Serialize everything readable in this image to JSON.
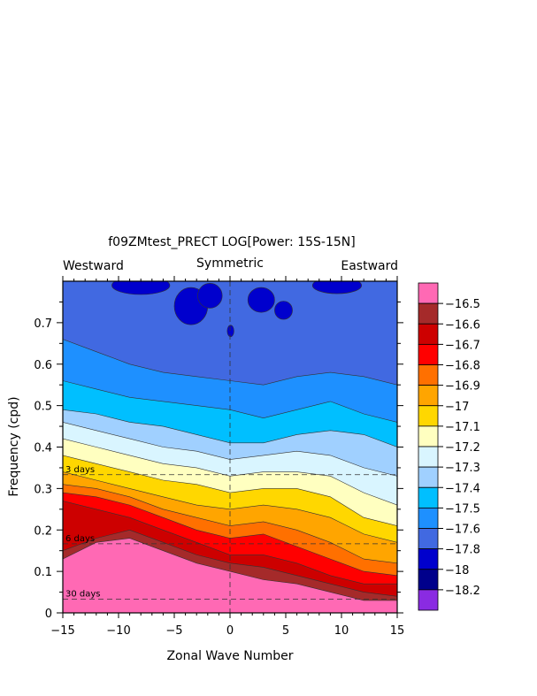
{
  "chart_data": {
    "type": "heatmap",
    "title": "f09ZMtest_PRECT LOG[Power: 15S-15N]",
    "subtitle_left": "Westward",
    "subtitle_center": "Symmetric",
    "subtitle_right": "Eastward",
    "xlabel": "Zonal Wave Number",
    "ylabel": "Frequency (cpd)",
    "xlim": [
      -15,
      15
    ],
    "ylim": [
      0,
      0.8
    ],
    "x_ticks": [
      -15,
      -10,
      -5,
      0,
      5,
      10,
      15
    ],
    "x_tick_labels": [
      "−15",
      "−10",
      "−5",
      "0",
      "5",
      "10",
      "15"
    ],
    "y_ticks": [
      0,
      0.1,
      0.2,
      0.3,
      0.4,
      0.5,
      0.6,
      0.7
    ],
    "y_tick_labels": [
      "0",
      "0.1",
      "0.2",
      "0.3",
      "0.4",
      "0.5",
      "0.6",
      "0.7"
    ],
    "reference_lines": [
      {
        "frequency": 0.3333,
        "label": "3 days"
      },
      {
        "frequency": 0.1667,
        "label": "6 days"
      },
      {
        "frequency": 0.0333,
        "label": "30 days"
      }
    ],
    "x": [
      -15,
      -12,
      -9,
      -6,
      -3,
      0,
      3,
      6,
      9,
      12,
      15
    ],
    "contour_bands": [
      {
        "below": -16.5,
        "color": "#ff69b4",
        "top": [
          0.13,
          0.17,
          0.18,
          0.15,
          0.12,
          0.1,
          0.08,
          0.07,
          0.05,
          0.03,
          0.03
        ]
      },
      {
        "below": -16.6,
        "color": "#a52a2a",
        "top": [
          0.15,
          0.18,
          0.2,
          0.17,
          0.14,
          0.12,
          0.11,
          0.09,
          0.07,
          0.05,
          0.04
        ]
      },
      {
        "below": -16.7,
        "color": "#cd0000",
        "top": [
          0.27,
          0.25,
          0.23,
          0.2,
          0.17,
          0.14,
          0.14,
          0.12,
          0.09,
          0.07,
          0.07
        ]
      },
      {
        "below": -16.8,
        "color": "#ff0000",
        "top": [
          0.29,
          0.28,
          0.26,
          0.23,
          0.2,
          0.18,
          0.19,
          0.16,
          0.13,
          0.1,
          0.09
        ]
      },
      {
        "below": -16.9,
        "color": "#ff7000",
        "top": [
          0.31,
          0.3,
          0.28,
          0.25,
          0.23,
          0.21,
          0.22,
          0.2,
          0.17,
          0.13,
          0.12
        ]
      },
      {
        "below": -17,
        "color": "#ffa500",
        "top": [
          0.34,
          0.32,
          0.3,
          0.28,
          0.26,
          0.25,
          0.26,
          0.25,
          0.23,
          0.19,
          0.17
        ]
      },
      {
        "below": -17.1,
        "color": "#ffd700",
        "top": [
          0.38,
          0.36,
          0.34,
          0.32,
          0.31,
          0.29,
          0.3,
          0.3,
          0.28,
          0.23,
          0.21
        ]
      },
      {
        "below": -17.2,
        "color": "#ffffc0",
        "top": [
          0.42,
          0.4,
          0.38,
          0.36,
          0.35,
          0.33,
          0.34,
          0.34,
          0.33,
          0.29,
          0.26
        ]
      },
      {
        "below": -17.3,
        "color": "#d9f5ff",
        "top": [
          0.46,
          0.44,
          0.42,
          0.4,
          0.39,
          0.37,
          0.38,
          0.39,
          0.38,
          0.35,
          0.33
        ]
      },
      {
        "below": -17.4,
        "color": "#a0d0ff",
        "top": [
          0.49,
          0.48,
          0.46,
          0.45,
          0.43,
          0.41,
          0.41,
          0.43,
          0.44,
          0.43,
          0.4
        ]
      },
      {
        "below": -17.5,
        "color": "#00bfff",
        "top": [
          0.56,
          0.54,
          0.52,
          0.51,
          0.5,
          0.49,
          0.47,
          0.49,
          0.51,
          0.48,
          0.46
        ]
      },
      {
        "below": -17.6,
        "color": "#1e90ff",
        "top": [
          0.66,
          0.63,
          0.6,
          0.58,
          0.57,
          0.56,
          0.55,
          0.57,
          0.58,
          0.57,
          0.55
        ]
      },
      {
        "below": -17.8,
        "color": "#4169e1",
        "top": [
          0.8,
          0.8,
          0.8,
          0.8,
          0.8,
          0.8,
          0.8,
          0.8,
          0.8,
          0.8,
          0.8
        ]
      }
    ],
    "dark_blue_patches": [
      {
        "x": -8,
        "y": 0.79,
        "rx": 2.6,
        "ry": 0.022
      },
      {
        "x": -3.5,
        "y": 0.74,
        "rx": 1.5,
        "ry": 0.045
      },
      {
        "x": -1.8,
        "y": 0.765,
        "rx": 1.1,
        "ry": 0.03
      },
      {
        "x": 2.8,
        "y": 0.755,
        "rx": 1.2,
        "ry": 0.03
      },
      {
        "x": 4.8,
        "y": 0.73,
        "rx": 0.8,
        "ry": 0.022
      },
      {
        "x": 9.6,
        "y": 0.79,
        "rx": 2.2,
        "ry": 0.02
      },
      {
        "x": 0.05,
        "y": 0.68,
        "rx": 0.3,
        "ry": 0.014
      }
    ],
    "legend": {
      "colors": [
        "#ff69b4",
        "#a52a2a",
        "#cd0000",
        "#ff0000",
        "#ff7000",
        "#ffa500",
        "#ffd700",
        "#ffffc0",
        "#d9f5ff",
        "#a0d0ff",
        "#00bfff",
        "#1e90ff",
        "#4169e1",
        "#0000cd",
        "#00008b",
        "#8a2be2"
      ],
      "labels": [
        "−16.5",
        "−16.6",
        "−16.7",
        "−16.8",
        "−16.9",
        "−17",
        "−17.1",
        "−17.2",
        "−17.3",
        "−17.4",
        "−17.5",
        "−17.6",
        "−17.8",
        "−18",
        "−18.2"
      ]
    }
  }
}
